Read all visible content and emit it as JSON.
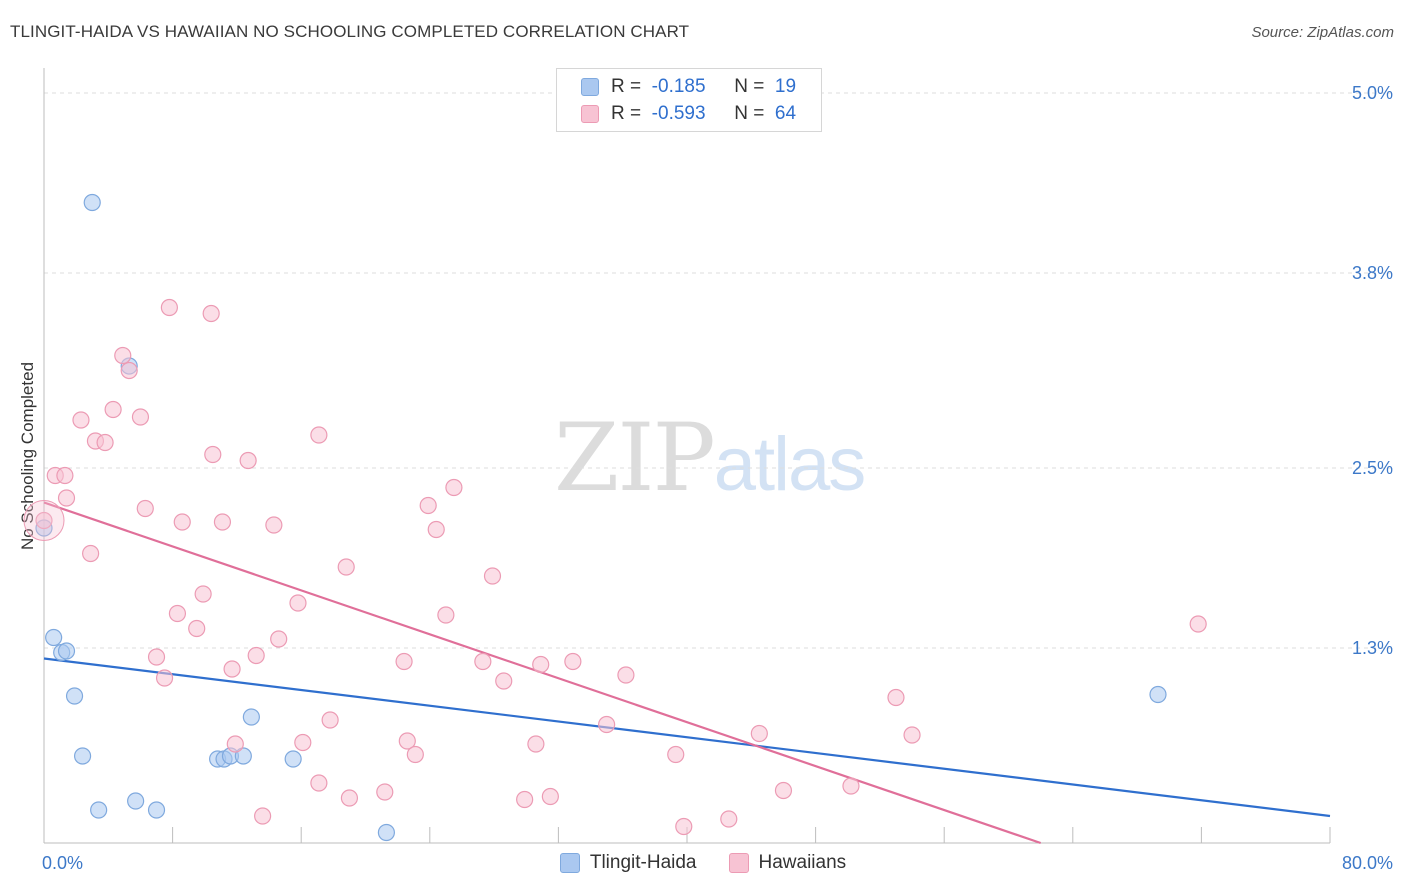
{
  "title": "TLINGIT-HAIDA VS HAWAIIAN NO SCHOOLING COMPLETED CORRELATION CHART",
  "source": "Source: ZipAtlas.com",
  "watermark": {
    "zip": "ZIP",
    "atlas": "atlas"
  },
  "legend": {
    "r_label": "R =",
    "n_label": "N =",
    "rows": [
      {
        "series": "Tlingit-Haida",
        "r": "-0.185",
        "n": "19",
        "color": "#aac8f0",
        "stroke": "#7fa9de"
      },
      {
        "series": "Hawaiians",
        "r": "-0.593",
        "n": "64",
        "color": "#f7c3d3",
        "stroke": "#ec9bb4"
      }
    ]
  },
  "chart_data": {
    "type": "scatter",
    "title": "TLINGIT-HAIDA VS HAWAIIAN NO SCHOOLING COMPLETED CORRELATION CHART",
    "xlabel": "",
    "ylabel": "No Schooling Completed",
    "xlim": [
      0,
      80
    ],
    "ylim": [
      0,
      5.1
    ],
    "x_tick_labels": [
      "0.0%",
      "80.0%"
    ],
    "y_ticks": [
      1.3,
      2.5,
      3.8,
      5.0
    ],
    "y_tick_labels": [
      "1.3%",
      "2.5%",
      "3.8%",
      "5.0%"
    ],
    "legend_position": "top-center",
    "series": [
      {
        "name": "Tlingit-Haida",
        "color": "#aac8f0",
        "stroke": "#7fa9de",
        "line_color": "#2f6fce",
        "trend": [
          [
            0,
            1.23
          ],
          [
            80,
            0.18
          ]
        ],
        "points": [
          [
            3.0,
            4.27
          ],
          [
            5.3,
            3.18
          ],
          [
            0.0,
            2.1
          ],
          [
            0.6,
            1.37
          ],
          [
            1.1,
            1.27
          ],
          [
            1.4,
            1.28
          ],
          [
            1.9,
            0.98
          ],
          [
            2.4,
            0.58
          ],
          [
            3.4,
            0.22
          ],
          [
            5.7,
            0.28
          ],
          [
            7.0,
            0.22
          ],
          [
            10.8,
            0.56
          ],
          [
            11.2,
            0.56
          ],
          [
            11.6,
            0.58
          ],
          [
            12.4,
            0.58
          ],
          [
            12.9,
            0.84
          ],
          [
            15.5,
            0.56
          ],
          [
            21.3,
            0.07
          ],
          [
            69.3,
            0.99
          ]
        ]
      },
      {
        "name": "Hawaiians",
        "color": "#f7c3d3",
        "stroke": "#ec9bb4",
        "line_color": "#e06f99",
        "trend": [
          [
            0,
            2.27
          ],
          [
            62,
            0.0
          ]
        ],
        "points": [
          [
            0.0,
            2.15
          ],
          [
            0.7,
            2.45
          ],
          [
            1.3,
            2.45
          ],
          [
            1.4,
            2.3
          ],
          [
            2.3,
            2.82
          ],
          [
            3.2,
            2.68
          ],
          [
            3.8,
            2.67
          ],
          [
            2.9,
            1.93
          ],
          [
            4.3,
            2.89
          ],
          [
            4.9,
            3.25
          ],
          [
            5.3,
            3.15
          ],
          [
            6.0,
            2.84
          ],
          [
            6.3,
            2.23
          ],
          [
            7.0,
            1.24
          ],
          [
            7.5,
            1.1
          ],
          [
            7.8,
            3.57
          ],
          [
            8.3,
            1.53
          ],
          [
            8.6,
            2.14
          ],
          [
            9.5,
            1.43
          ],
          [
            9.9,
            1.66
          ],
          [
            10.4,
            3.53
          ],
          [
            10.5,
            2.59
          ],
          [
            11.1,
            2.14
          ],
          [
            11.7,
            1.16
          ],
          [
            11.9,
            0.66
          ],
          [
            12.7,
            2.55
          ],
          [
            13.2,
            1.25
          ],
          [
            13.6,
            0.18
          ],
          [
            14.3,
            2.12
          ],
          [
            14.6,
            1.36
          ],
          [
            15.8,
            1.6
          ],
          [
            16.1,
            0.67
          ],
          [
            17.1,
            2.72
          ],
          [
            17.1,
            0.4
          ],
          [
            17.8,
            0.82
          ],
          [
            18.8,
            1.84
          ],
          [
            19.0,
            0.3
          ],
          [
            21.2,
            0.34
          ],
          [
            22.4,
            1.21
          ],
          [
            22.6,
            0.68
          ],
          [
            23.1,
            0.59
          ],
          [
            23.9,
            2.25
          ],
          [
            24.4,
            2.09
          ],
          [
            25.0,
            1.52
          ],
          [
            25.5,
            2.37
          ],
          [
            27.3,
            1.21
          ],
          [
            27.9,
            1.78
          ],
          [
            28.6,
            1.08
          ],
          [
            29.9,
            0.29
          ],
          [
            30.6,
            0.66
          ],
          [
            30.9,
            1.19
          ],
          [
            31.5,
            0.31
          ],
          [
            32.9,
            1.21
          ],
          [
            35.0,
            0.79
          ],
          [
            36.2,
            1.12
          ],
          [
            39.3,
            0.59
          ],
          [
            39.8,
            0.11
          ],
          [
            42.6,
            0.16
          ],
          [
            44.5,
            0.73
          ],
          [
            46.0,
            0.35
          ],
          [
            50.2,
            0.38
          ],
          [
            53.0,
            0.97
          ],
          [
            54.0,
            0.72
          ],
          [
            71.8,
            1.46
          ]
        ]
      }
    ]
  }
}
